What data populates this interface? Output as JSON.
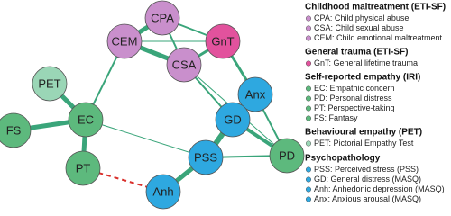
{
  "nodes": [
    {
      "label": "CPA"
    },
    {
      "label": "CEM"
    },
    {
      "label": "CSA"
    },
    {
      "label": "GnT"
    },
    {
      "label": "PET"
    },
    {
      "label": "EC"
    },
    {
      "label": "FS"
    },
    {
      "label": "PT"
    },
    {
      "label": "Anx"
    },
    {
      "label": "GD"
    },
    {
      "label": "PSS"
    },
    {
      "label": "PD"
    },
    {
      "label": "Anh"
    }
  ],
  "legend": [
    {
      "title": "Childhood maltreatment (ETI-SF)",
      "items": [
        "CPA: Child physical abuse",
        "CSA: Child sexual abuse",
        "CEM: Child emotional maltreatment"
      ]
    },
    {
      "title": "General trauma (ETI-SF)",
      "items": [
        "GnT: General lifetime trauma"
      ]
    },
    {
      "title": "Self-reported empathy (IRI)",
      "items": [
        "EC: Empathic concern",
        "PD: Personal distress",
        "PT: Perspective-taking",
        "FS: Fantasy"
      ]
    },
    {
      "title": "Behavioural empathy (PET)",
      "items": [
        "PET: Pictorial Empathy Test"
      ]
    },
    {
      "title": "Psychopathology",
      "items": [
        "PSS: Perceived stress (PSS)",
        "GD: General distress (MASQ)",
        "Anh: Anhedonic depression (MASQ)",
        "Anx: Anxious arousal (MASQ)"
      ]
    }
  ]
}
